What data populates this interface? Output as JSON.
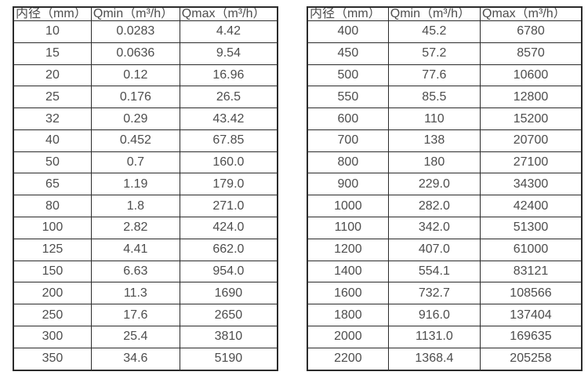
{
  "colors": {
    "background": "#ffffff",
    "border": "#2b2b2b",
    "text": "#4d4d4d"
  },
  "tables": [
    {
      "id": "small-diameters",
      "headers": [
        "内径（mm）",
        "Qmin（m³/h）",
        "Qmax（m³/h）"
      ],
      "rows": [
        [
          "10",
          "0.0283",
          "4.42"
        ],
        [
          "15",
          "0.0636",
          "9.54"
        ],
        [
          "20",
          "0.12",
          "16.96"
        ],
        [
          "25",
          "0.176",
          "26.5"
        ],
        [
          "32",
          "0.29",
          "43.42"
        ],
        [
          "40",
          "0.452",
          "67.85"
        ],
        [
          "50",
          "0.7",
          "160.0"
        ],
        [
          "65",
          "1.19",
          "179.0"
        ],
        [
          "80",
          "1.8",
          "271.0"
        ],
        [
          "100",
          "2.82",
          "424.0"
        ],
        [
          "125",
          "4.41",
          "662.0"
        ],
        [
          "150",
          "6.63",
          "954.0"
        ],
        [
          "200",
          "11.3",
          "1690"
        ],
        [
          "250",
          "17.6",
          "2650"
        ],
        [
          "300",
          "25.4",
          "3810"
        ],
        [
          "350",
          "34.6",
          "5190"
        ]
      ]
    },
    {
      "id": "large-diameters",
      "headers": [
        "内径（mm）",
        "Qmin（m³/h）",
        "Qmax（m³/h）"
      ],
      "rows": [
        [
          "400",
          "45.2",
          "6780"
        ],
        [
          "450",
          "57.2",
          "8570"
        ],
        [
          "500",
          "77.6",
          "10600"
        ],
        [
          "550",
          "85.5",
          "12800"
        ],
        [
          "600",
          "110",
          "15200"
        ],
        [
          "700",
          "138",
          "20700"
        ],
        [
          "800",
          "180",
          "27100"
        ],
        [
          "900",
          "229.0",
          "34300"
        ],
        [
          "1000",
          "282.0",
          "42400"
        ],
        [
          "1100",
          "342.0",
          "51300"
        ],
        [
          "1200",
          "407.0",
          "61000"
        ],
        [
          "1400",
          "554.1",
          "83121"
        ],
        [
          "1600",
          "732.7",
          "108566"
        ],
        [
          "1800",
          "916.0",
          "137404"
        ],
        [
          "2000",
          "1131.0",
          "169635"
        ],
        [
          "2200",
          "1368.4",
          "205258"
        ]
      ]
    }
  ]
}
